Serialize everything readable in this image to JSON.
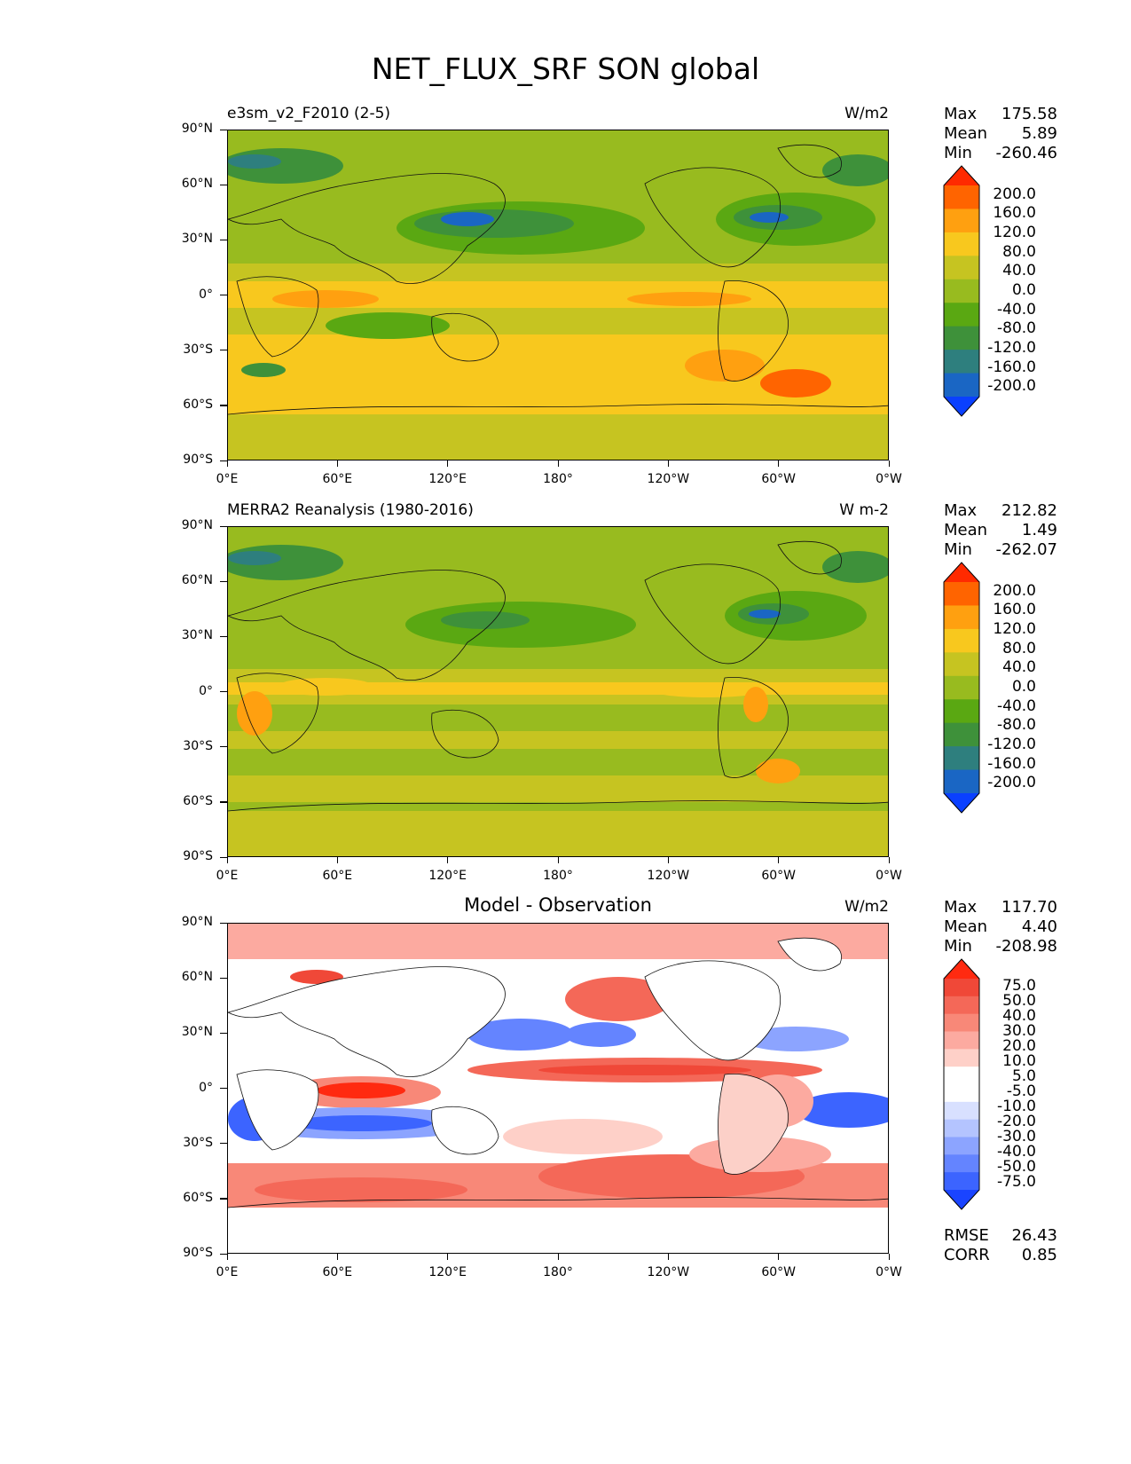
{
  "figure": {
    "title": "NET_FLUX_SRF SON global"
  },
  "axes": {
    "lat_labels": [
      "90°N",
      "60°N",
      "30°N",
      "0°",
      "30°S",
      "60°S",
      "90°S"
    ],
    "lon_labels": [
      "0°E",
      "60°E",
      "120°E",
      "180°",
      "120°W",
      "60°W",
      "0°W"
    ]
  },
  "panels": [
    {
      "title": "e3sm_v2_F2010 (2-5)",
      "title_style": "left",
      "units": "W/m2",
      "stats": {
        "max_label": "Max",
        "max": "175.58",
        "mean_label": "Mean",
        "mean": "5.89",
        "min_label": "Min",
        "min": "-260.46"
      },
      "colorbar": {
        "labels": [
          "200.0",
          "160.0",
          "120.0",
          "80.0",
          "40.0",
          "0.0",
          "-40.0",
          "-80.0",
          "-120.0",
          "-160.0",
          "-200.0"
        ],
        "colors": [
          "#ff2a00",
          "#ff6400",
          "#ffa010",
          "#f8c81e",
          "#c6c421",
          "#98bb1f",
          "#5aa812",
          "#3e913a",
          "#2e7f7e",
          "#1a66c4",
          "#0a40ff"
        ]
      }
    },
    {
      "title": "MERRA2 Reanalysis (1980-2016)",
      "title_style": "left",
      "units": "W m-2",
      "stats": {
        "max_label": "Max",
        "max": "212.82",
        "mean_label": "Mean",
        "mean": "1.49",
        "min_label": "Min",
        "min": "-262.07"
      },
      "colorbar": {
        "labels": [
          "200.0",
          "160.0",
          "120.0",
          "80.0",
          "40.0",
          "0.0",
          "-40.0",
          "-80.0",
          "-120.0",
          "-160.0",
          "-200.0"
        ],
        "colors": [
          "#ff2a00",
          "#ff6400",
          "#ffa010",
          "#f8c81e",
          "#c6c421",
          "#98bb1f",
          "#5aa812",
          "#3e913a",
          "#2e7f7e",
          "#1a66c4",
          "#0a40ff"
        ]
      }
    },
    {
      "title": "Model - Observation",
      "title_style": "center",
      "units": "W/m2",
      "stats": {
        "max_label": "Max",
        "max": "117.70",
        "mean_label": "Mean",
        "mean": "4.40",
        "min_label": "Min",
        "min": "-208.98"
      },
      "colorbar": {
        "labels": [
          "75.0",
          "50.0",
          "40.0",
          "30.0",
          "20.0",
          "10.0",
          "5.0",
          "-5.0",
          "-10.0",
          "-20.0",
          "-30.0",
          "-40.0",
          "-50.0",
          "-75.0"
        ],
        "colors": [
          "#ff2a10",
          "#f04838",
          "#f46858",
          "#f88878",
          "#fcaaa0",
          "#fed0c8",
          "#ffffff",
          "#ffffff",
          "#d8e0ff",
          "#b4c4ff",
          "#8ca4ff",
          "#6484ff",
          "#3c64ff",
          "#1a44ff"
        ]
      },
      "extra": {
        "rmse_label": "RMSE",
        "rmse": "26.43",
        "corr_label": "CORR",
        "corr": "0.85"
      }
    }
  ]
}
